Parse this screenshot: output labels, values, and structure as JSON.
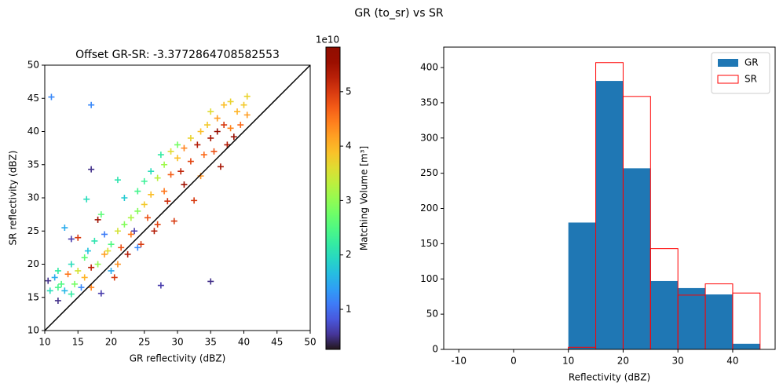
{
  "suptitle": "GR (to_sr) vs SR",
  "chart_data": [
    {
      "type": "scatter",
      "title": "Offset GR-SR: -3.3772864708582553",
      "x_label": "GR reflectivity (dBZ)",
      "y_label": "SR reflectivity (dBZ)",
      "xlim": [
        10,
        50
      ],
      "ylim": [
        10,
        50
      ],
      "xticks": [
        10,
        15,
        20,
        25,
        30,
        35,
        40,
        45,
        50
      ],
      "yticks": [
        10,
        15,
        20,
        25,
        30,
        35,
        40,
        45,
        50
      ],
      "marker": "+",
      "identity_line": true,
      "colormap": "turbo",
      "x": [
        11,
        17,
        17,
        16.3,
        35,
        27.5,
        18.5,
        12,
        10.5,
        10.8,
        11.5,
        12,
        12.5,
        13,
        13,
        13.5,
        14,
        14,
        14.5,
        15,
        15,
        15.5,
        16,
        16,
        16.5,
        17,
        17.5,
        18,
        18,
        18.5,
        19,
        19,
        19.5,
        20,
        20,
        20.5,
        21,
        21,
        21.5,
        22,
        22,
        22.5,
        23,
        23,
        23.5,
        24,
        24,
        24.5,
        25,
        25,
        25.5,
        26,
        26,
        26.5,
        27,
        27,
        27.5,
        28,
        28,
        28.5,
        29,
        29,
        29.5,
        30,
        30,
        30.5,
        31,
        31,
        32,
        32,
        32.5,
        33,
        33.5,
        33.5,
        34,
        34.5,
        35,
        35,
        35.5,
        36,
        36,
        36.5,
        37,
        37,
        37.5,
        38,
        38,
        38.5,
        39,
        39.5,
        40,
        40.5,
        40.5,
        12,
        14,
        17,
        21,
        24
      ],
      "values": [
        45.2,
        44,
        34.3,
        29.8,
        17.4,
        16.8,
        15.6,
        14.5,
        17.5,
        16,
        18,
        19,
        17,
        16,
        25.5,
        18.5,
        20,
        23.8,
        17,
        24,
        19,
        16.5,
        21,
        18,
        22,
        19.5,
        23.5,
        26.7,
        20,
        27.5,
        21.5,
        24.5,
        22,
        23,
        19,
        18,
        25,
        32.7,
        22.5,
        26,
        30,
        21.5,
        27,
        24.5,
        25,
        28,
        31,
        23,
        29,
        32.5,
        27,
        34,
        30.5,
        25,
        33,
        26,
        36.5,
        31,
        35,
        29.5,
        37,
        33.5,
        26.5,
        36,
        38,
        34,
        37.5,
        32,
        39,
        35.5,
        29.6,
        38,
        40,
        33.3,
        36.5,
        41,
        39,
        43,
        37,
        42,
        40,
        34.7,
        44,
        41,
        38,
        44.5,
        40.5,
        39.2,
        43,
        41,
        44,
        45.3,
        42.5,
        16.5,
        15.5,
        16.5,
        20,
        22.5
      ],
      "color_values": [
        12000000000.0,
        12000000000.0,
        5000000000.0,
        20000000000.0,
        5000000000.0,
        6000000000.0,
        6000000000.0,
        5000000000.0,
        5000000000.0,
        20000000000.0,
        15000000000.0,
        22000000000.0,
        25000000000.0,
        16000000000.0,
        15000000000.0,
        45000000000.0,
        20000000000.0,
        6000000000.0,
        28000000000.0,
        50000000000.0,
        35000000000.0,
        12000000000.0,
        26000000000.0,
        40000000000.0,
        17000000000.0,
        52000000000.0,
        21000000000.0,
        55000000000.0,
        30000000000.0,
        26000000000.0,
        42000000000.0,
        11000000000.0,
        36000000000.0,
        25000000000.0,
        15000000000.0,
        50000000000.0,
        35000000000.0,
        21000000000.0,
        48000000000.0,
        29000000000.0,
        18000000000.0,
        53000000000.0,
        32000000000.0,
        45000000000.0,
        6000000000.0,
        29000000000.0,
        24000000000.0,
        50000000000.0,
        38000000000.0,
        23000000000.0,
        48000000000.0,
        20000000000.0,
        39000000000.0,
        53000000000.0,
        33000000000.0,
        49000000000.0,
        22000000000.0,
        45000000000.0,
        31000000000.0,
        51000000000.0,
        36000000000.0,
        47000000000.0,
        50000000000.0,
        39000000000.0,
        28000000000.0,
        52000000000.0,
        44000000000.0,
        55000000000.0,
        37000000000.0,
        49000000000.0,
        50000000000.0,
        53000000000.0,
        39000000000.0,
        43000000000.0,
        46000000000.0,
        38000000000.0,
        54000000000.0,
        36000000000.0,
        48000000000.0,
        42000000000.0,
        56000000000.0,
        54000000000.0,
        39000000000.0,
        50000000000.0,
        53000000000.0,
        37000000000.0,
        44000000000.0,
        56000000000.0,
        40000000000.0,
        46000000000.0,
        38000000000.0,
        37000000000.0,
        42000000000.0,
        24000000000.0,
        22000000000.0,
        44000000000.0,
        43000000000.0,
        12000000000.0
      ],
      "clim": [
        2640000000.0,
        58200000000.0
      ],
      "colorbar_ticks": [
        {
          "value": 10000000000.0,
          "label": "1"
        },
        {
          "value": 20000000000.0,
          "label": "2"
        },
        {
          "value": 30000000000.0,
          "label": "3"
        },
        {
          "value": 40000000000.0,
          "label": "4"
        },
        {
          "value": 50000000000.0,
          "label": "5"
        }
      ],
      "colorbar_offset": "1e10",
      "colorbar_label": "Matching Volume [m³]"
    },
    {
      "type": "histogram",
      "x_label": "Reflectivity (dBZ)",
      "bins": [
        -10,
        -5,
        0,
        5,
        10,
        15,
        20,
        25,
        30,
        35,
        40,
        45
      ],
      "series": [
        {
          "name": "GR",
          "color": "#1f77b4",
          "histtype": "bar",
          "values": [
            0,
            0,
            0,
            0,
            180,
            381,
            257,
            97,
            87,
            78,
            8
          ]
        },
        {
          "name": "SR",
          "color": "#ff0000",
          "histtype": "step",
          "values": [
            0,
            0,
            0,
            0,
            3,
            407,
            359,
            143,
            77,
            93,
            80
          ]
        }
      ],
      "xlim": [
        -12.75,
        47.75
      ],
      "ylim": [
        0,
        429
      ],
      "xticks": [
        -10,
        0,
        10,
        20,
        30,
        40
      ],
      "yticks": [
        0,
        50,
        100,
        150,
        200,
        250,
        300,
        350,
        400
      ],
      "legend": "upper right"
    }
  ]
}
